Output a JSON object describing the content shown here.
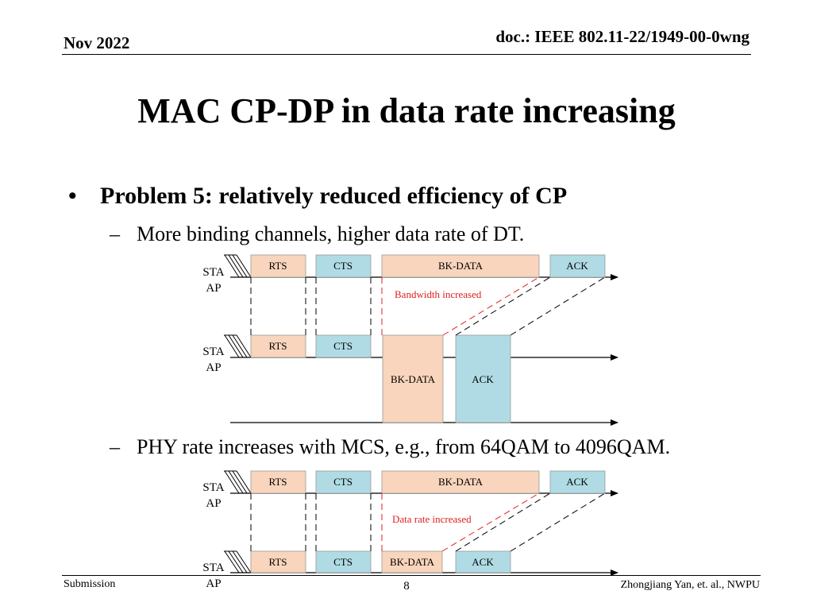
{
  "header": {
    "date": "Nov 2022",
    "doc_id": "doc.: IEEE 802.11-22/1949-00-0wng"
  },
  "title": "MAC CP-DP in data rate increasing",
  "bullet": "Problem 5: relatively reduced efficiency of CP",
  "sub1": "More binding channels, higher data rate of DT.",
  "sub2": "PHY rate increases with MCS, e.g., from 64QAM to 4096QAM.",
  "diagram1": {
    "sta": "STA",
    "ap": "AP",
    "top": {
      "rts": "RTS",
      "cts": "CTS",
      "data": "BK-DATA",
      "ack": "ACK"
    },
    "bottom": {
      "rts": "RTS",
      "cts": "CTS",
      "data": "BK-DATA",
      "ack": "ACK"
    },
    "annotation": "Bandwidth increased"
  },
  "diagram2": {
    "sta": "STA",
    "ap": "AP",
    "top": {
      "rts": "RTS",
      "cts": "CTS",
      "data": "BK-DATA",
      "ack": "ACK"
    },
    "bottom": {
      "rts": "RTS",
      "cts": "CTS",
      "data": "BK-DATA",
      "ack": "ACK"
    },
    "annotation": "Data rate increased"
  },
  "footer": {
    "left": "Submission",
    "page": "8",
    "right": "Zhongjiang Yan, et. al., NWPU"
  },
  "colors": {
    "data": "#f8d5bc",
    "control": "#b0dbe5",
    "annotation": "#e02020"
  }
}
